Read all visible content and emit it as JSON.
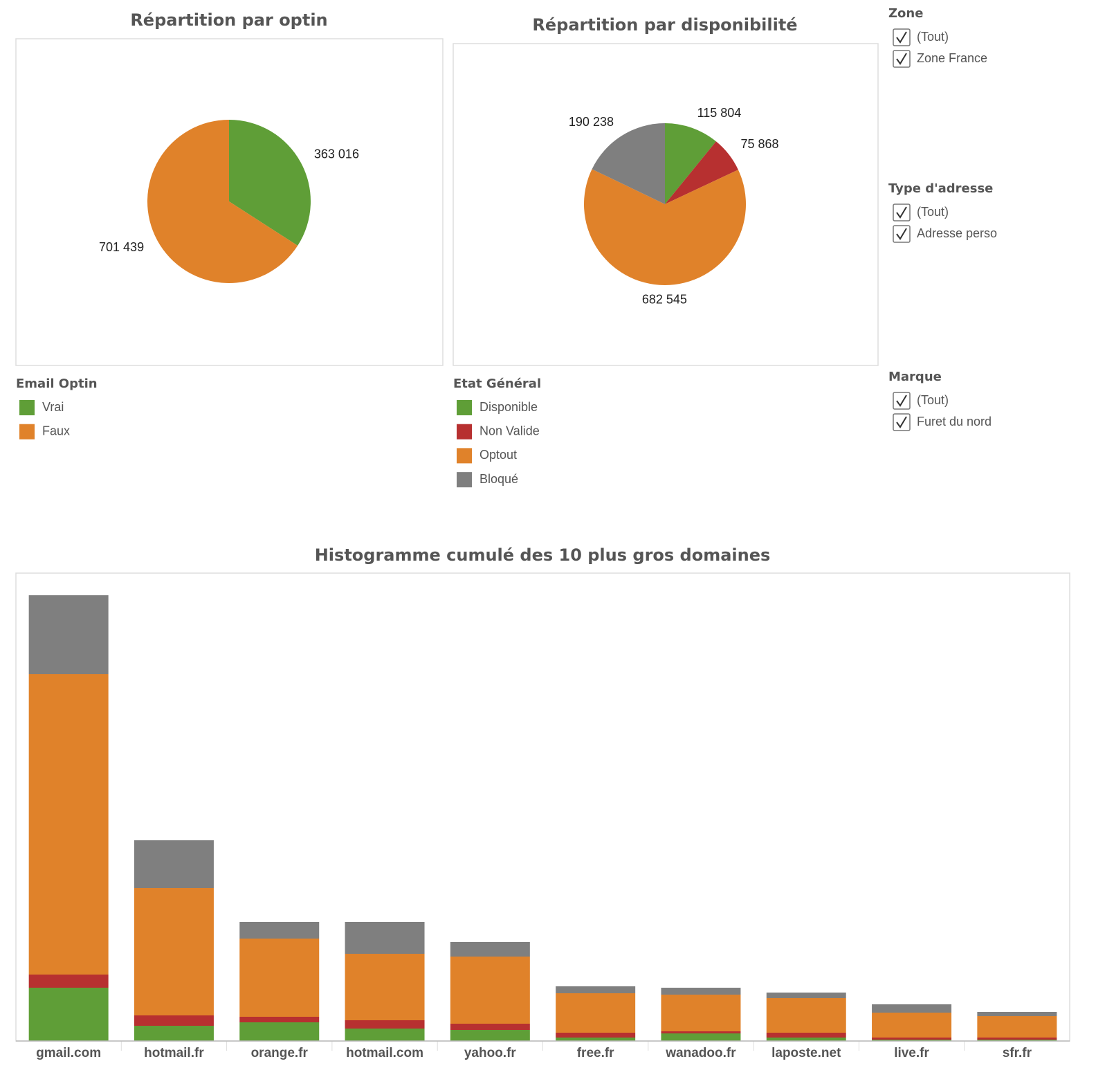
{
  "chart_data": [
    {
      "type": "pie",
      "title": "Répartition par optin",
      "legend_title": "Email Optin",
      "categories": [
        "Vrai",
        "Faux"
      ],
      "values": [
        363016,
        701439
      ],
      "value_labels": [
        "363 016",
        "701 439"
      ],
      "colors": [
        "#5f9e37",
        "#e0822a"
      ]
    },
    {
      "type": "pie",
      "title": "Répartition par disponibilité",
      "legend_title": "Etat Général",
      "categories": [
        "Disponible",
        "Non Valide",
        "Optout",
        "Bloqué"
      ],
      "values": [
        115804,
        75868,
        682545,
        190238
      ],
      "value_labels": [
        "115 804",
        "75 868",
        "682 545",
        "190 238"
      ],
      "colors": [
        "#5f9e37",
        "#b73030",
        "#e0822a",
        "#7f7f7f"
      ]
    },
    {
      "type": "bar",
      "stacked": true,
      "title": "Histogramme cumulé des 10 plus gros domaines",
      "categories": [
        "gmail.com",
        "hotmail.fr",
        "orange.fr",
        "hotmail.com",
        "yahoo.fr",
        "free.fr",
        "wanadoo.fr",
        "laposte.net",
        "live.fr",
        "sfr.fr"
      ],
      "series": [
        {
          "color": "#5f9e37",
          "values": [
            77,
            22,
            27,
            18,
            16,
            5,
            11,
            5,
            2,
            2
          ]
        },
        {
          "color": "#b73030",
          "values": [
            19,
            15,
            8,
            12,
            9,
            7,
            3,
            7,
            3,
            3
          ]
        },
        {
          "color": "#e0822a",
          "values": [
            434,
            184,
            113,
            96,
            97,
            57,
            53,
            50,
            36,
            31
          ]
        },
        {
          "color": "#7f7f7f",
          "values": [
            114,
            69,
            24,
            46,
            21,
            10,
            10,
            8,
            12,
            6
          ]
        }
      ]
    }
  ],
  "filters": [
    {
      "title": "Zone",
      "options": [
        "(Tout)",
        "Zone France"
      ]
    },
    {
      "title": "Type d'adresse",
      "options": [
        "(Tout)",
        "Adresse perso"
      ]
    },
    {
      "title": "Marque",
      "options": [
        "(Tout)",
        "Furet du nord"
      ]
    }
  ]
}
